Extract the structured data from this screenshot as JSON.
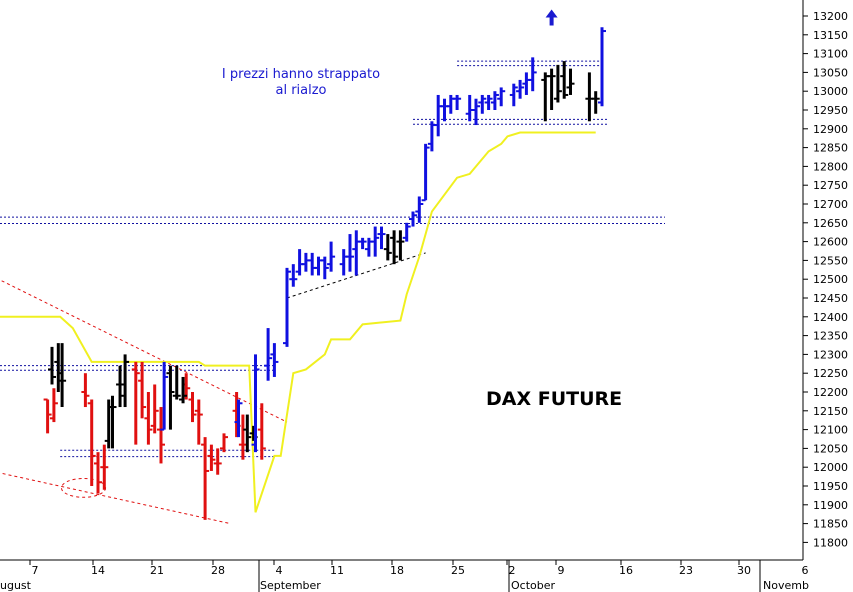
{
  "chart_data": {
    "type": "ohlc-bar",
    "title": "DAX FUTURE",
    "annotation": {
      "lines": [
        "I prezzi hanno strappato",
        "al rialzo"
      ],
      "color": "#1a1ad0"
    },
    "y_axis": {
      "position": "right",
      "range": [
        11750,
        13220
      ],
      "ticks": [
        11800,
        11850,
        11900,
        11950,
        12000,
        12050,
        12100,
        12150,
        12200,
        12250,
        12300,
        12350,
        12400,
        12450,
        12500,
        12550,
        12600,
        12650,
        12700,
        12750,
        12800,
        12850,
        12900,
        12950,
        13000,
        13050,
        13100,
        13150,
        13200
      ]
    },
    "x_axis": {
      "day_labels": [
        "7",
        "14",
        "21",
        "28",
        "4",
        "11",
        "18",
        "25",
        "2",
        "9",
        "16",
        "23",
        "30",
        "6"
      ],
      "month_labels": [
        "ugust",
        "September",
        "October",
        "Novemb"
      ]
    },
    "colors": {
      "down": "#e01010",
      "neutral": "#000000",
      "up": "#1010e0",
      "moving_average": "#f0f020",
      "support_resistance": "#1010a0",
      "trendline_red": "#e01010",
      "trendline_black": "#000000",
      "arrow": "#1a1ad0"
    },
    "series": [
      {
        "color": "down",
        "bars": [
          {
            "x": 2,
            "o": 12180,
            "h": 12180,
            "l": 12090,
            "c": 12140
          },
          {
            "x": 3,
            "o": 12130,
            "h": 12210,
            "l": 12120,
            "c": 12170
          },
          {
            "x": 8,
            "o": 12200,
            "h": 12250,
            "l": 12160,
            "c": 12190
          },
          {
            "x": 9,
            "o": 12170,
            "h": 12180,
            "l": 11950,
            "c": 12030
          },
          {
            "x": 10,
            "o": 12010,
            "h": 12040,
            "l": 11930,
            "c": 11960
          },
          {
            "x": 11,
            "o": 12000,
            "h": 12060,
            "l": 11940,
            "c": 12000
          },
          {
            "x": 16,
            "o": 12260,
            "h": 12280,
            "l": 12060,
            "c": 12250
          },
          {
            "x": 17,
            "o": 12230,
            "h": 12280,
            "l": 12130,
            "c": 12160
          },
          {
            "x": 18,
            "o": 12130,
            "h": 12200,
            "l": 12060,
            "c": 12100
          },
          {
            "x": 19,
            "o": 12110,
            "h": 12220,
            "l": 12090,
            "c": 12150
          },
          {
            "x": 20,
            "o": 12100,
            "h": 12160,
            "l": 12010,
            "c": 12060
          },
          {
            "x": 24,
            "o": 12220,
            "h": 12250,
            "l": 12180,
            "c": 12210
          },
          {
            "x": 25,
            "o": 12180,
            "h": 12200,
            "l": 12120,
            "c": 12140
          },
          {
            "x": 26,
            "o": 12150,
            "h": 12180,
            "l": 12060,
            "c": 12140
          },
          {
            "x": 27,
            "o": 12060,
            "h": 12080,
            "l": 11860,
            "c": 11990
          },
          {
            "x": 28,
            "o": 12030,
            "h": 12060,
            "l": 11990,
            "c": 12020
          },
          {
            "x": 29,
            "o": 12010,
            "h": 12050,
            "l": 11980,
            "c": 12010
          },
          {
            "x": 30,
            "o": 12050,
            "h": 12090,
            "l": 12040,
            "c": 12080
          },
          {
            "x": 32,
            "o": 12150,
            "h": 12200,
            "l": 12080,
            "c": 12110
          },
          {
            "x": 33,
            "o": 12060,
            "h": 12140,
            "l": 12020,
            "c": 12060
          },
          {
            "x": 36,
            "o": 12100,
            "h": 12170,
            "l": 12020,
            "c": 12050
          }
        ]
      },
      {
        "color": "neutral",
        "bars": [
          {
            "x": 2.7,
            "o": 12260,
            "h": 12320,
            "l": 12220,
            "c": 12240
          },
          {
            "x": 3.7,
            "o": 12280,
            "h": 12330,
            "l": 12200,
            "c": 12250
          },
          {
            "x": 4.3,
            "o": 12230,
            "h": 12330,
            "l": 12160,
            "c": 12230
          },
          {
            "x": 11.7,
            "o": 12070,
            "h": 12180,
            "l": 12050,
            "c": 12160
          },
          {
            "x": 12.3,
            "o": 12160,
            "h": 12190,
            "l": 12050,
            "c": 12160
          },
          {
            "x": 13.5,
            "o": 12220,
            "h": 12270,
            "l": 12160,
            "c": 12220
          },
          {
            "x": 14.3,
            "o": 12190,
            "h": 12300,
            "l": 12160,
            "c": 12280
          },
          {
            "x": 21.5,
            "o": 12250,
            "h": 12270,
            "l": 12100,
            "c": 12200
          },
          {
            "x": 22.5,
            "o": 12190,
            "h": 12270,
            "l": 12180,
            "c": 12190
          },
          {
            "x": 23.5,
            "o": 12180,
            "h": 12240,
            "l": 12170,
            "c": 12190
          },
          {
            "x": 33.7,
            "o": 12100,
            "h": 12140,
            "l": 12040,
            "c": 12080
          },
          {
            "x": 34.7,
            "o": 12090,
            "h": 12110,
            "l": 12070,
            "c": 12080
          },
          {
            "x": 56,
            "o": 12580,
            "h": 12620,
            "l": 12550,
            "c": 12570
          },
          {
            "x": 57,
            "o": 12610,
            "h": 12630,
            "l": 12540,
            "c": 12560
          },
          {
            "x": 58,
            "o": 12600,
            "h": 12630,
            "l": 12550,
            "c": 12600
          },
          {
            "x": 81,
            "o": 13030,
            "h": 13050,
            "l": 12920,
            "c": 13040
          },
          {
            "x": 82,
            "o": 13040,
            "h": 13060,
            "l": 12950,
            "c": 13040
          },
          {
            "x": 83,
            "o": 12980,
            "h": 13070,
            "l": 12970,
            "c": 13000
          },
          {
            "x": 84,
            "o": 13040,
            "h": 13080,
            "l": 12980,
            "c": 12990
          },
          {
            "x": 85,
            "o": 13010,
            "h": 13060,
            "l": 12990,
            "c": 13020
          },
          {
            "x": 88,
            "o": 12980,
            "h": 13050,
            "l": 12920,
            "c": 12980
          },
          {
            "x": 89,
            "o": 12980,
            "h": 13000,
            "l": 12940,
            "c": 12980
          }
        ]
      },
      {
        "color": "up",
        "bars": [
          {
            "x": 20.5,
            "o": 12100,
            "h": 12280,
            "l": 12100,
            "c": 12240
          },
          {
            "x": 32.3,
            "o": 12120,
            "h": 12180,
            "l": 12080,
            "c": 12170
          },
          {
            "x": 35,
            "o": 12060,
            "h": 12300,
            "l": 12040,
            "c": 12260
          },
          {
            "x": 37,
            "o": 12270,
            "h": 12370,
            "l": 12230,
            "c": 12290
          },
          {
            "x": 38,
            "o": 12300,
            "h": 12330,
            "l": 12240,
            "c": 12280
          },
          {
            "x": 40,
            "o": 12330,
            "h": 12530,
            "l": 12320,
            "c": 12520
          },
          {
            "x": 41,
            "o": 12500,
            "h": 12540,
            "l": 12480,
            "c": 12500
          },
          {
            "x": 42,
            "o": 12520,
            "h": 12580,
            "l": 12510,
            "c": 12540
          },
          {
            "x": 43,
            "o": 12540,
            "h": 12570,
            "l": 12520,
            "c": 12550
          },
          {
            "x": 44,
            "o": 12550,
            "h": 12570,
            "l": 12510,
            "c": 12530
          },
          {
            "x": 45,
            "o": 12530,
            "h": 12560,
            "l": 12510,
            "c": 12550
          },
          {
            "x": 46,
            "o": 12550,
            "h": 12560,
            "l": 12500,
            "c": 12530
          },
          {
            "x": 47,
            "o": 12540,
            "h": 12600,
            "l": 12520,
            "c": 12560
          },
          {
            "x": 49,
            "o": 12540,
            "h": 12580,
            "l": 12510,
            "c": 12560
          },
          {
            "x": 50,
            "o": 12560,
            "h": 12620,
            "l": 12520,
            "c": 12560
          },
          {
            "x": 51,
            "o": 12580,
            "h": 12630,
            "l": 12510,
            "c": 12600
          },
          {
            "x": 52,
            "o": 12600,
            "h": 12610,
            "l": 12580,
            "c": 12600
          },
          {
            "x": 53,
            "o": 12580,
            "h": 12610,
            "l": 12560,
            "c": 12600
          },
          {
            "x": 54,
            "o": 12600,
            "h": 12640,
            "l": 12560,
            "c": 12610
          },
          {
            "x": 55,
            "o": 12620,
            "h": 12640,
            "l": 12580,
            "c": 12620
          },
          {
            "x": 59,
            "o": 12610,
            "h": 12650,
            "l": 12600,
            "c": 12640
          },
          {
            "x": 60,
            "o": 12660,
            "h": 12680,
            "l": 12640,
            "c": 12670
          },
          {
            "x": 61,
            "o": 12680,
            "h": 12720,
            "l": 12650,
            "c": 12700
          },
          {
            "x": 62,
            "o": 12710,
            "h": 12860,
            "l": 12710,
            "c": 12850
          },
          {
            "x": 63,
            "o": 12860,
            "h": 12920,
            "l": 12840,
            "c": 12910
          },
          {
            "x": 64,
            "o": 12910,
            "h": 12990,
            "l": 12880,
            "c": 12960
          },
          {
            "x": 65,
            "o": 12960,
            "h": 12980,
            "l": 12920,
            "c": 12960
          },
          {
            "x": 66,
            "o": 12960,
            "h": 12990,
            "l": 12940,
            "c": 12980
          },
          {
            "x": 67,
            "o": 12980,
            "h": 12990,
            "l": 12950,
            "c": 12980
          },
          {
            "x": 69,
            "o": 12940,
            "h": 12990,
            "l": 12920,
            "c": 12950
          },
          {
            "x": 70,
            "o": 12950,
            "h": 12980,
            "l": 12910,
            "c": 12960
          },
          {
            "x": 71,
            "o": 12970,
            "h": 12990,
            "l": 12940,
            "c": 12980
          },
          {
            "x": 72,
            "o": 12970,
            "h": 12990,
            "l": 12950,
            "c": 12980
          },
          {
            "x": 73,
            "o": 12970,
            "h": 13000,
            "l": 12950,
            "c": 12990
          },
          {
            "x": 74,
            "o": 12980,
            "h": 13010,
            "l": 12960,
            "c": 13000
          },
          {
            "x": 76,
            "o": 12990,
            "h": 13020,
            "l": 12960,
            "c": 13010
          },
          {
            "x": 77,
            "o": 13000,
            "h": 13030,
            "l": 12980,
            "c": 13010
          },
          {
            "x": 78,
            "o": 13020,
            "h": 13050,
            "l": 12990,
            "c": 13030
          },
          {
            "x": 79,
            "o": 13030,
            "h": 13090,
            "l": 13000,
            "c": 13050
          },
          {
            "x": 90,
            "o": 12970,
            "h": 13170,
            "l": 12960,
            "c": 13160
          }
        ]
      }
    ],
    "moving_average": {
      "points": [
        [
          -7,
          12400
        ],
        [
          4,
          12400
        ],
        [
          6,
          12370
        ],
        [
          9,
          12280
        ],
        [
          26,
          12280
        ],
        [
          27,
          12270
        ],
        [
          34,
          12270
        ],
        [
          35,
          11880
        ],
        [
          38,
          12030
        ],
        [
          39,
          12030
        ],
        [
          41,
          12250
        ],
        [
          43,
          12260
        ],
        [
          46,
          12300
        ],
        [
          47,
          12340
        ],
        [
          50,
          12340
        ],
        [
          52,
          12380
        ],
        [
          58,
          12390
        ],
        [
          59,
          12460
        ],
        [
          61,
          12560
        ],
        [
          63,
          12680
        ],
        [
          67,
          12770
        ],
        [
          69,
          12780
        ],
        [
          70,
          12800
        ],
        [
          72,
          12840
        ],
        [
          74,
          12860
        ],
        [
          75,
          12880
        ],
        [
          77,
          12890
        ],
        [
          79,
          12890
        ],
        [
          80,
          12890
        ],
        [
          88,
          12890
        ],
        [
          89,
          12890
        ]
      ]
    },
    "support_resistance_lines": [
      {
        "y1": 12665,
        "y2": 12648,
        "x_start": -7,
        "x_end": 100
      },
      {
        "y1": 12270,
        "y2": 12258,
        "x_start": -7,
        "x_end": 38
      },
      {
        "y1": 12045,
        "y2": 12028,
        "x_start": 4,
        "x_end": 38
      },
      {
        "y1": 12925,
        "y2": 12912,
        "x_start": 60,
        "x_end": 91
      },
      {
        "y1": 13080,
        "y2": 13068,
        "x_start": 67,
        "x_end": 90
      }
    ],
    "trendlines": [
      {
        "color": "trendline_red",
        "from": [
          -7,
          12510
        ],
        "to": [
          40,
          12120
        ]
      },
      {
        "color": "trendline_red",
        "from": [
          -7,
          11990
        ],
        "to": [
          31,
          11850
        ]
      },
      {
        "color": "trendline_black",
        "from": [
          40,
          12450
        ],
        "to": [
          62,
          12570
        ]
      }
    ],
    "highlight_ellipse": {
      "cx": 7.7,
      "cy": 11945,
      "rx": 3.5,
      "ry": 25
    },
    "arrow": {
      "x": 82,
      "y": 13180
    }
  }
}
